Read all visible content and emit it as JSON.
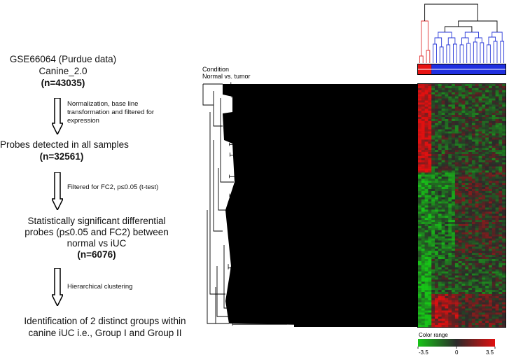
{
  "flowchart": {
    "steps": [
      {
        "line1": "GSE66064 (Purdue data)",
        "line2": "Canine_2.0",
        "count": "(n=43035)"
      },
      {
        "line1": "Probes detected in all samples",
        "count": "(n=32561)"
      },
      {
        "line1": "Statistically significant  differential",
        "line2": "probes (p≤0.05 and FC2) between",
        "line3": "normal vs iUC",
        "count": "(n=6076)"
      },
      {
        "line1": "Identification of 2 distinct groups within",
        "line2": "canine iUC i.e., Group I and Group II"
      }
    ],
    "arrow_labels": [
      "Normalization, base line transformation and filtered for expression",
      "Filtered for FC2, p≤0.05 (t-test)",
      "Hierarchical clustering"
    ]
  },
  "heatmap": {
    "condition_label": "Condition",
    "condition_sublabel": "Normal vs. tumor",
    "samples": {
      "normal": 4,
      "tumor": 22
    },
    "condition_colors": {
      "normal": "#e81313",
      "tumor": "#1f2fe0"
    },
    "dendrogram_colors": {
      "normal": "#e03030",
      "tumor": "#2a3ad8",
      "root": "#000000"
    },
    "color_range": {
      "title": "Color range",
      "min": "-3.5",
      "mid": "0",
      "max": "3.5",
      "low_color": "#17c417",
      "mid_color": "#2a2a2a",
      "high_color": "#e01010"
    }
  }
}
